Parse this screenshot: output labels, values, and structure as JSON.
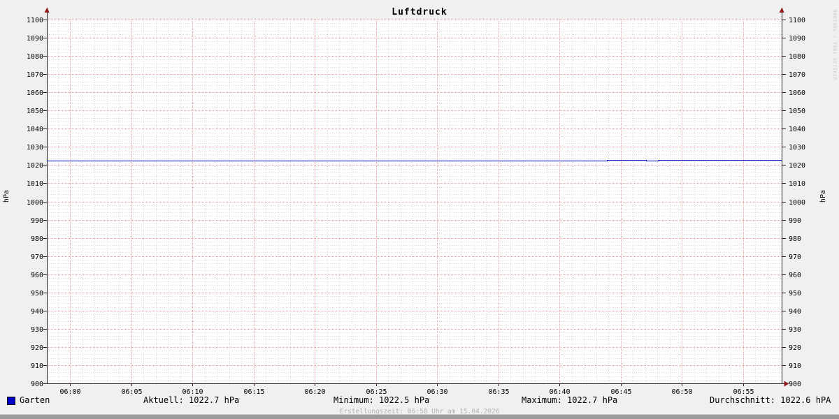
{
  "title": "Luftdruck",
  "y_axis": {
    "left_unit": "hPa",
    "right_unit": "hPa"
  },
  "watermark": "RRDTOOL / TOBI OETIKER",
  "legend": {
    "label": "Garten",
    "swatch_color": "#0000c8"
  },
  "stats": {
    "aktuell": "Aktuell: 1022.7 hPa",
    "minimum": "Minimum: 1022.5 hPa",
    "maximum": "Maximum: 1022.7 hPa",
    "durchschnitt": "Durchschnitt: 1022.6 hPA"
  },
  "footer": "Erstellungszeit: 06:58 Uhr am 15.04.2026",
  "colors": {
    "background": "#f0f0f0",
    "canvas": "#ffffff",
    "grid_major": "#e9a0a0",
    "grid_minor": "#d9d9d9",
    "axis": "#1f1f1f",
    "arrow": "#8f1c1c",
    "line": "#0000c8",
    "tick_text": "#000000",
    "footer_text": "#b4b4b4",
    "watermark_text": "#c8c8c8",
    "bottom_bar": "#9b9b9b"
  },
  "chart_data": {
    "type": "line",
    "title": "Luftdruck",
    "ylabel": "hPa",
    "ylim": [
      900,
      1100
    ],
    "y_ticks": [
      900,
      910,
      920,
      930,
      940,
      950,
      960,
      970,
      980,
      990,
      1000,
      1010,
      1020,
      1030,
      1040,
      1050,
      1060,
      1070,
      1080,
      1090,
      1100
    ],
    "y_minor_step_hpa": 2,
    "x_ticks": [
      "06:00",
      "06:05",
      "06:10",
      "06:15",
      "06:20",
      "06:25",
      "06:30",
      "06:35",
      "06:40",
      "06:45",
      "06:50",
      "06:55"
    ],
    "x_tick_interval_minutes": 5,
    "x_minor_interval_minutes": 1,
    "x_range_minutes": [
      -1.9,
      58.2
    ],
    "grid": true,
    "legend_position": "bottom-left",
    "series": [
      {
        "name": "Garten",
        "color": "#0000c8",
        "points_minutes_value": [
          [
            -1.9,
            1022.6
          ],
          [
            43.9,
            1022.6
          ],
          [
            43.9,
            1022.7
          ],
          [
            47.1,
            1022.7
          ],
          [
            47.1,
            1022.6
          ],
          [
            48.1,
            1022.6
          ],
          [
            48.1,
            1022.7
          ],
          [
            58.2,
            1022.7
          ]
        ]
      }
    ],
    "stats": {
      "aktuell_hpa": 1022.7,
      "minimum_hpa": 1022.5,
      "maximum_hpa": 1022.7,
      "durchschnitt_hpa": 1022.6
    }
  }
}
